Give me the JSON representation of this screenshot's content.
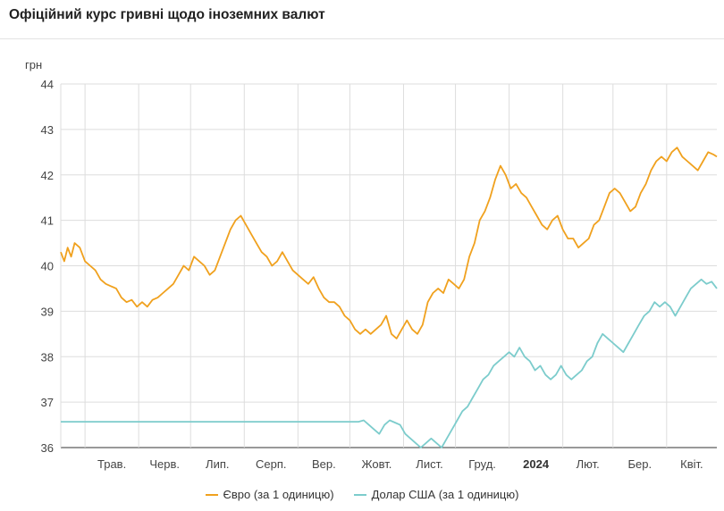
{
  "title": "Офіційний курс гривні щодо іноземних валют",
  "chart_data": {
    "type": "line",
    "ylabel": "грн",
    "ylim": [
      36,
      44
    ],
    "yticks": [
      36,
      37,
      38,
      39,
      40,
      41,
      42,
      43,
      44
    ],
    "x_range": [
      "2023-04-17",
      "2024-04-30"
    ],
    "x_tick_labels": [
      {
        "label": "Трав.",
        "date": "2023-05-01",
        "bold": false
      },
      {
        "label": "Черв.",
        "date": "2023-06-01",
        "bold": false
      },
      {
        "label": "Лип.",
        "date": "2023-07-01",
        "bold": false
      },
      {
        "label": "Серп.",
        "date": "2023-08-01",
        "bold": false
      },
      {
        "label": "Вер.",
        "date": "2023-09-01",
        "bold": false
      },
      {
        "label": "Жовт.",
        "date": "2023-10-01",
        "bold": false
      },
      {
        "label": "Лист.",
        "date": "2023-11-01",
        "bold": false
      },
      {
        "label": "Груд.",
        "date": "2023-12-01",
        "bold": false
      },
      {
        "label": "2024",
        "date": "2024-01-01",
        "bold": true
      },
      {
        "label": "Лют.",
        "date": "2024-02-01",
        "bold": false
      },
      {
        "label": "Бер.",
        "date": "2024-03-01",
        "bold": false
      },
      {
        "label": "Квіт.",
        "date": "2024-04-01",
        "bold": false
      }
    ],
    "grid": true,
    "legend_position": "bottom",
    "series": [
      {
        "name": "Євро (за 1 одиницю)",
        "color": "#f0a11e",
        "points": [
          [
            "2023-04-17",
            40.3
          ],
          [
            "2023-04-19",
            40.1
          ],
          [
            "2023-04-21",
            40.4
          ],
          [
            "2023-04-23",
            40.2
          ],
          [
            "2023-04-25",
            40.5
          ],
          [
            "2023-04-28",
            40.4
          ],
          [
            "2023-05-01",
            40.1
          ],
          [
            "2023-05-04",
            40.0
          ],
          [
            "2023-05-07",
            39.9
          ],
          [
            "2023-05-10",
            39.7
          ],
          [
            "2023-05-13",
            39.6
          ],
          [
            "2023-05-16",
            39.55
          ],
          [
            "2023-05-19",
            39.5
          ],
          [
            "2023-05-22",
            39.3
          ],
          [
            "2023-05-25",
            39.2
          ],
          [
            "2023-05-28",
            39.25
          ],
          [
            "2023-05-31",
            39.1
          ],
          [
            "2023-06-03",
            39.2
          ],
          [
            "2023-06-06",
            39.1
          ],
          [
            "2023-06-09",
            39.25
          ],
          [
            "2023-06-12",
            39.3
          ],
          [
            "2023-06-15",
            39.4
          ],
          [
            "2023-06-18",
            39.5
          ],
          [
            "2023-06-21",
            39.6
          ],
          [
            "2023-06-24",
            39.8
          ],
          [
            "2023-06-27",
            40.0
          ],
          [
            "2023-06-30",
            39.9
          ],
          [
            "2023-07-03",
            40.2
          ],
          [
            "2023-07-06",
            40.1
          ],
          [
            "2023-07-09",
            40.0
          ],
          [
            "2023-07-12",
            39.8
          ],
          [
            "2023-07-15",
            39.9
          ],
          [
            "2023-07-18",
            40.2
          ],
          [
            "2023-07-21",
            40.5
          ],
          [
            "2023-07-24",
            40.8
          ],
          [
            "2023-07-27",
            41.0
          ],
          [
            "2023-07-30",
            41.1
          ],
          [
            "2023-08-02",
            40.9
          ],
          [
            "2023-08-05",
            40.7
          ],
          [
            "2023-08-08",
            40.5
          ],
          [
            "2023-08-11",
            40.3
          ],
          [
            "2023-08-14",
            40.2
          ],
          [
            "2023-08-17",
            40.0
          ],
          [
            "2023-08-20",
            40.1
          ],
          [
            "2023-08-23",
            40.3
          ],
          [
            "2023-08-26",
            40.1
          ],
          [
            "2023-08-29",
            39.9
          ],
          [
            "2023-09-01",
            39.8
          ],
          [
            "2023-09-04",
            39.7
          ],
          [
            "2023-09-07",
            39.6
          ],
          [
            "2023-09-10",
            39.75
          ],
          [
            "2023-09-13",
            39.5
          ],
          [
            "2023-09-16",
            39.3
          ],
          [
            "2023-09-19",
            39.2
          ],
          [
            "2023-09-22",
            39.2
          ],
          [
            "2023-09-25",
            39.1
          ],
          [
            "2023-09-28",
            38.9
          ],
          [
            "2023-10-01",
            38.8
          ],
          [
            "2023-10-04",
            38.6
          ],
          [
            "2023-10-07",
            38.5
          ],
          [
            "2023-10-10",
            38.6
          ],
          [
            "2023-10-13",
            38.5
          ],
          [
            "2023-10-16",
            38.6
          ],
          [
            "2023-10-19",
            38.7
          ],
          [
            "2023-10-22",
            38.9
          ],
          [
            "2023-10-25",
            38.5
          ],
          [
            "2023-10-28",
            38.4
          ],
          [
            "2023-10-31",
            38.6
          ],
          [
            "2023-11-03",
            38.8
          ],
          [
            "2023-11-06",
            38.6
          ],
          [
            "2023-11-09",
            38.5
          ],
          [
            "2023-11-12",
            38.7
          ],
          [
            "2023-11-15",
            39.2
          ],
          [
            "2023-11-18",
            39.4
          ],
          [
            "2023-11-21",
            39.5
          ],
          [
            "2023-11-24",
            39.4
          ],
          [
            "2023-11-27",
            39.7
          ],
          [
            "2023-11-30",
            39.6
          ],
          [
            "2023-12-03",
            39.5
          ],
          [
            "2023-12-06",
            39.7
          ],
          [
            "2023-12-09",
            40.2
          ],
          [
            "2023-12-12",
            40.5
          ],
          [
            "2023-12-15",
            41.0
          ],
          [
            "2023-12-18",
            41.2
          ],
          [
            "2023-12-21",
            41.5
          ],
          [
            "2023-12-24",
            41.9
          ],
          [
            "2023-12-27",
            42.2
          ],
          [
            "2023-12-30",
            42.0
          ],
          [
            "2024-01-02",
            41.7
          ],
          [
            "2024-01-05",
            41.8
          ],
          [
            "2024-01-08",
            41.6
          ],
          [
            "2024-01-11",
            41.5
          ],
          [
            "2024-01-14",
            41.3
          ],
          [
            "2024-01-17",
            41.1
          ],
          [
            "2024-01-20",
            40.9
          ],
          [
            "2024-01-23",
            40.8
          ],
          [
            "2024-01-26",
            41.0
          ],
          [
            "2024-01-29",
            41.1
          ],
          [
            "2024-02-01",
            40.8
          ],
          [
            "2024-02-04",
            40.6
          ],
          [
            "2024-02-07",
            40.6
          ],
          [
            "2024-02-10",
            40.4
          ],
          [
            "2024-02-13",
            40.5
          ],
          [
            "2024-02-16",
            40.6
          ],
          [
            "2024-02-19",
            40.9
          ],
          [
            "2024-02-22",
            41.0
          ],
          [
            "2024-02-25",
            41.3
          ],
          [
            "2024-02-28",
            41.6
          ],
          [
            "2024-03-02",
            41.7
          ],
          [
            "2024-03-05",
            41.6
          ],
          [
            "2024-03-08",
            41.4
          ],
          [
            "2024-03-11",
            41.2
          ],
          [
            "2024-03-14",
            41.3
          ],
          [
            "2024-03-17",
            41.6
          ],
          [
            "2024-03-20",
            41.8
          ],
          [
            "2024-03-23",
            42.1
          ],
          [
            "2024-03-26",
            42.3
          ],
          [
            "2024-03-29",
            42.4
          ],
          [
            "2024-04-01",
            42.3
          ],
          [
            "2024-04-04",
            42.5
          ],
          [
            "2024-04-07",
            42.6
          ],
          [
            "2024-04-10",
            42.4
          ],
          [
            "2024-04-13",
            42.3
          ],
          [
            "2024-04-16",
            42.2
          ],
          [
            "2024-04-19",
            42.1
          ],
          [
            "2024-04-22",
            42.3
          ],
          [
            "2024-04-25",
            42.5
          ],
          [
            "2024-04-28",
            42.45
          ],
          [
            "2024-04-30",
            42.4
          ]
        ]
      },
      {
        "name": "Долар США (за 1 одиницю)",
        "color": "#7ccccc",
        "points": [
          [
            "2023-04-17",
            36.5686
          ],
          [
            "2023-10-06",
            36.5686
          ],
          [
            "2023-10-09",
            36.6
          ],
          [
            "2023-10-12",
            36.5
          ],
          [
            "2023-10-15",
            36.4
          ],
          [
            "2023-10-18",
            36.3
          ],
          [
            "2023-10-21",
            36.5
          ],
          [
            "2023-10-24",
            36.6
          ],
          [
            "2023-10-27",
            36.55
          ],
          [
            "2023-10-30",
            36.5
          ],
          [
            "2023-11-02",
            36.3
          ],
          [
            "2023-11-05",
            36.2
          ],
          [
            "2023-11-08",
            36.1
          ],
          [
            "2023-11-11",
            36.0
          ],
          [
            "2023-11-14",
            36.1
          ],
          [
            "2023-11-17",
            36.2
          ],
          [
            "2023-11-20",
            36.1
          ],
          [
            "2023-11-23",
            36.0
          ],
          [
            "2023-11-26",
            36.2
          ],
          [
            "2023-11-29",
            36.4
          ],
          [
            "2023-12-02",
            36.6
          ],
          [
            "2023-12-05",
            36.8
          ],
          [
            "2023-12-08",
            36.9
          ],
          [
            "2023-12-11",
            37.1
          ],
          [
            "2023-12-14",
            37.3
          ],
          [
            "2023-12-17",
            37.5
          ],
          [
            "2023-12-20",
            37.6
          ],
          [
            "2023-12-23",
            37.8
          ],
          [
            "2023-12-26",
            37.9
          ],
          [
            "2023-12-29",
            38.0
          ],
          [
            "2024-01-01",
            38.1
          ],
          [
            "2024-01-04",
            38.0
          ],
          [
            "2024-01-07",
            38.2
          ],
          [
            "2024-01-10",
            38.0
          ],
          [
            "2024-01-13",
            37.9
          ],
          [
            "2024-01-16",
            37.7
          ],
          [
            "2024-01-19",
            37.8
          ],
          [
            "2024-01-22",
            37.6
          ],
          [
            "2024-01-25",
            37.5
          ],
          [
            "2024-01-28",
            37.6
          ],
          [
            "2024-01-31",
            37.8
          ],
          [
            "2024-02-03",
            37.6
          ],
          [
            "2024-02-06",
            37.5
          ],
          [
            "2024-02-09",
            37.6
          ],
          [
            "2024-02-12",
            37.7
          ],
          [
            "2024-02-15",
            37.9
          ],
          [
            "2024-02-18",
            38.0
          ],
          [
            "2024-02-21",
            38.3
          ],
          [
            "2024-02-24",
            38.5
          ],
          [
            "2024-02-27",
            38.4
          ],
          [
            "2024-03-01",
            38.3
          ],
          [
            "2024-03-04",
            38.2
          ],
          [
            "2024-03-07",
            38.1
          ],
          [
            "2024-03-10",
            38.3
          ],
          [
            "2024-03-13",
            38.5
          ],
          [
            "2024-03-16",
            38.7
          ],
          [
            "2024-03-19",
            38.9
          ],
          [
            "2024-03-22",
            39.0
          ],
          [
            "2024-03-25",
            39.2
          ],
          [
            "2024-03-28",
            39.1
          ],
          [
            "2024-03-31",
            39.2
          ],
          [
            "2024-04-03",
            39.1
          ],
          [
            "2024-04-06",
            38.9
          ],
          [
            "2024-04-09",
            39.1
          ],
          [
            "2024-04-12",
            39.3
          ],
          [
            "2024-04-15",
            39.5
          ],
          [
            "2024-04-18",
            39.6
          ],
          [
            "2024-04-21",
            39.7
          ],
          [
            "2024-04-24",
            39.6
          ],
          [
            "2024-04-27",
            39.65
          ],
          [
            "2024-04-30",
            39.5
          ]
        ]
      }
    ]
  }
}
